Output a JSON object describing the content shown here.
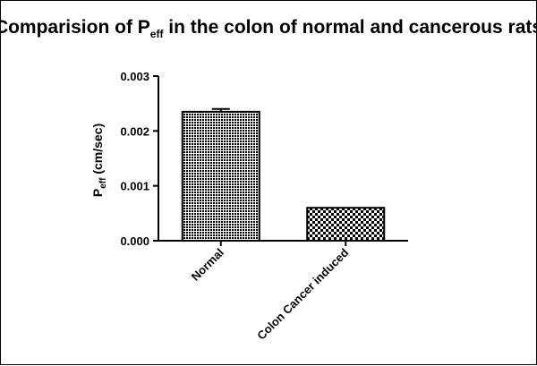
{
  "chart_data": {
    "type": "bar",
    "title": {
      "main": "Comparision of P",
      "subscript": "eff",
      "rest": " in the colon of normal and cancerous rats"
    },
    "ylabel": {
      "main": "P",
      "subscript": "eff",
      "rest": " (cm/sec)"
    },
    "xlabel": "",
    "categories": [
      "Normal",
      "Colon Cancer induced"
    ],
    "values": [
      0.00235,
      0.0006
    ],
    "errors": [
      5e-05,
      0
    ],
    "ylim": [
      0,
      0.003
    ],
    "yticks": [
      0,
      0.001,
      0.002,
      0.003
    ],
    "ytick_labels": [
      "0.000",
      "0.001",
      "0.002",
      "0.003"
    ],
    "patterns": [
      "dense-dot",
      "checker"
    ],
    "bar_color": "#000000",
    "grid": false,
    "legend": "none"
  }
}
